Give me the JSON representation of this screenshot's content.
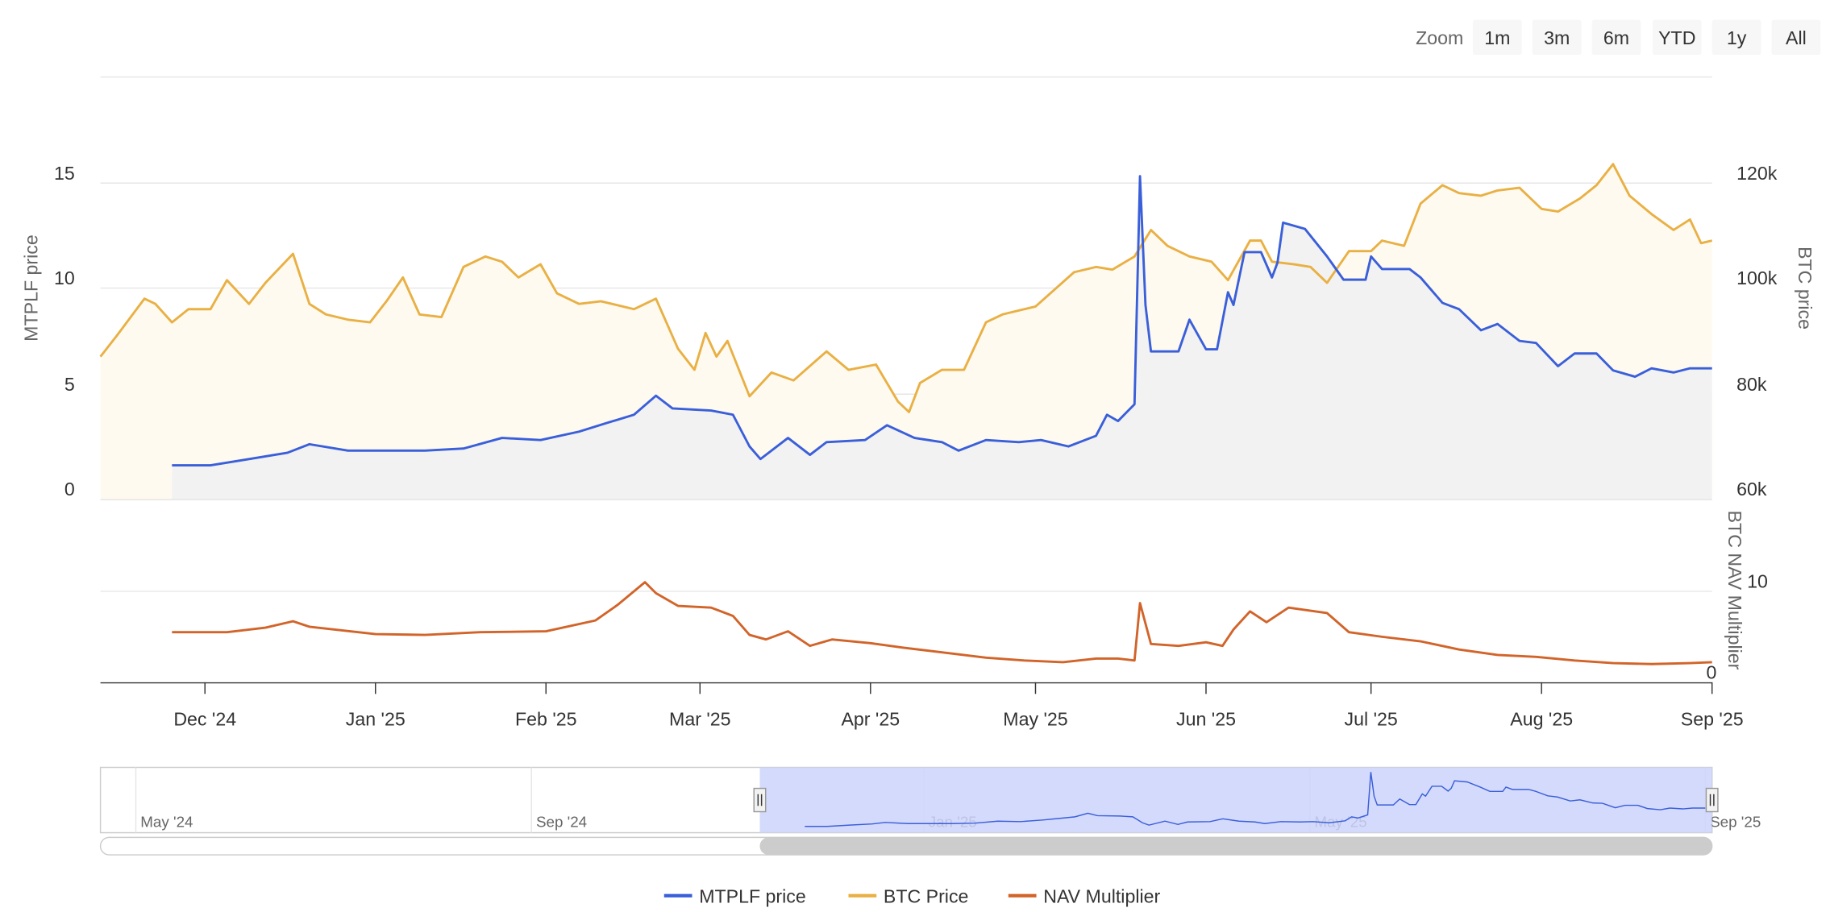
{
  "range_selector": {
    "label": "Zoom",
    "buttons": [
      "1m",
      "3m",
      "6m",
      "YTD",
      "1y",
      "All"
    ]
  },
  "legend": [
    "MTPLF price",
    "BTC Price",
    "NAV Multiplier"
  ],
  "colors": {
    "mtplf": "#3a5fd9",
    "btc": "#e9b044",
    "nav": "#d2642a",
    "mtplf_fill": "#f2f2f2",
    "btc_fill": "#fefaf0",
    "navigator_mask": "#ccd3fb"
  },
  "navigator": {
    "labels": [
      "May '24",
      "Sep '24",
      "Jan '25",
      "May '25",
      "Sep '25"
    ],
    "selected_range": [
      "2024-11-12",
      "2025-09-01"
    ]
  },
  "chart_data": {
    "type": "line",
    "x_range": [
      "2024-11-12",
      "2025-09-01"
    ],
    "x_ticks": [
      "Dec '24",
      "Jan '25",
      "Feb '25",
      "Mar '25",
      "Apr '25",
      "May '25",
      "Jun '25",
      "Jul '25",
      "Aug '25",
      "Sep '25"
    ],
    "grid": true,
    "legend_position": "bottom",
    "yaxes": [
      {
        "title": "MTPLF price",
        "ticks": [
          "0",
          "5",
          "10",
          "15"
        ],
        "range": [
          0,
          20
        ],
        "side": "left"
      },
      {
        "title": "BTC price",
        "ticks": [
          "60k",
          "80k",
          "100k",
          "120k"
        ],
        "range": [
          60000,
          140000
        ],
        "side": "right"
      },
      {
        "title": "BTC NAV Multiplier",
        "ticks": [
          "0",
          "10"
        ],
        "range": [
          0,
          18
        ],
        "side": "right",
        "pane": "lower"
      }
    ],
    "series": [
      {
        "name": "MTPLF price",
        "type": "area",
        "axis": 0,
        "data": [
          [
            "2024-11-25",
            1.6
          ],
          [
            "2024-12-02",
            1.6
          ],
          [
            "2024-12-09",
            1.9
          ],
          [
            "2024-12-16",
            2.2
          ],
          [
            "2024-12-20",
            2.6
          ],
          [
            "2024-12-27",
            2.3
          ],
          [
            "2025-01-03",
            2.3
          ],
          [
            "2025-01-10",
            2.3
          ],
          [
            "2025-01-17",
            2.4
          ],
          [
            "2025-01-24",
            2.9
          ],
          [
            "2025-01-31",
            2.8
          ],
          [
            "2025-02-07",
            3.2
          ],
          [
            "2025-02-12",
            3.6
          ],
          [
            "2025-02-17",
            4.0
          ],
          [
            "2025-02-21",
            4.9
          ],
          [
            "2025-02-24",
            4.3
          ],
          [
            "2025-03-03",
            4.2
          ],
          [
            "2025-03-07",
            4.0
          ],
          [
            "2025-03-10",
            2.5
          ],
          [
            "2025-03-12",
            1.9
          ],
          [
            "2025-03-17",
            2.9
          ],
          [
            "2025-03-21",
            2.1
          ],
          [
            "2025-03-24",
            2.7
          ],
          [
            "2025-03-31",
            2.8
          ],
          [
            "2025-04-04",
            3.5
          ],
          [
            "2025-04-09",
            2.9
          ],
          [
            "2025-04-14",
            2.7
          ],
          [
            "2025-04-17",
            2.3
          ],
          [
            "2025-04-22",
            2.8
          ],
          [
            "2025-04-28",
            2.7
          ],
          [
            "2025-05-02",
            2.8
          ],
          [
            "2025-05-07",
            2.5
          ],
          [
            "2025-05-12",
            3.0
          ],
          [
            "2025-05-14",
            4.0
          ],
          [
            "2025-05-16",
            3.7
          ],
          [
            "2025-05-19",
            4.5
          ],
          [
            "2025-05-20",
            15.3
          ],
          [
            "2025-05-21",
            9.2
          ],
          [
            "2025-05-22",
            7.0
          ],
          [
            "2025-05-27",
            7.0
          ],
          [
            "2025-05-29",
            8.5
          ],
          [
            "2025-06-01",
            7.1
          ],
          [
            "2025-06-03",
            7.1
          ],
          [
            "2025-06-05",
            9.8
          ],
          [
            "2025-06-06",
            9.2
          ],
          [
            "2025-06-08",
            11.7
          ],
          [
            "2025-06-11",
            11.7
          ],
          [
            "2025-06-13",
            10.5
          ],
          [
            "2025-06-14",
            11.2
          ],
          [
            "2025-06-15",
            13.1
          ],
          [
            "2025-06-19",
            12.8
          ],
          [
            "2025-06-23",
            11.5
          ],
          [
            "2025-06-26",
            10.4
          ],
          [
            "2025-06-30",
            10.4
          ],
          [
            "2025-07-01",
            11.5
          ],
          [
            "2025-07-03",
            10.9
          ],
          [
            "2025-07-08",
            10.9
          ],
          [
            "2025-07-10",
            10.5
          ],
          [
            "2025-07-14",
            9.3
          ],
          [
            "2025-07-17",
            9.0
          ],
          [
            "2025-07-21",
            8.0
          ],
          [
            "2025-07-24",
            8.3
          ],
          [
            "2025-07-28",
            7.5
          ],
          [
            "2025-07-31",
            7.4
          ],
          [
            "2025-08-04",
            6.3
          ],
          [
            "2025-08-07",
            6.9
          ],
          [
            "2025-08-11",
            6.9
          ],
          [
            "2025-08-14",
            6.1
          ],
          [
            "2025-08-18",
            5.8
          ],
          [
            "2025-08-21",
            6.2
          ],
          [
            "2025-08-25",
            6.0
          ],
          [
            "2025-08-28",
            6.2
          ],
          [
            "2025-09-01",
            6.2
          ]
        ]
      },
      {
        "name": "BTC Price",
        "type": "area",
        "axis": 1,
        "data": [
          [
            "2024-11-12",
            87000
          ],
          [
            "2024-11-15",
            91000
          ],
          [
            "2024-11-20",
            98000
          ],
          [
            "2024-11-22",
            97000
          ],
          [
            "2024-11-25",
            93500
          ],
          [
            "2024-11-28",
            96000
          ],
          [
            "2024-12-02",
            96000
          ],
          [
            "2024-12-05",
            101500
          ],
          [
            "2024-12-09",
            97000
          ],
          [
            "2024-12-12",
            101000
          ],
          [
            "2024-12-17",
            106500
          ],
          [
            "2024-12-20",
            97000
          ],
          [
            "2024-12-23",
            95000
          ],
          [
            "2024-12-27",
            94000
          ],
          [
            "2024-12-31",
            93500
          ],
          [
            "2025-01-03",
            97500
          ],
          [
            "2025-01-06",
            102000
          ],
          [
            "2025-01-09",
            95000
          ],
          [
            "2025-01-13",
            94500
          ],
          [
            "2025-01-17",
            104000
          ],
          [
            "2025-01-21",
            106000
          ],
          [
            "2025-01-24",
            105000
          ],
          [
            "2025-01-27",
            102000
          ],
          [
            "2025-01-31",
            104500
          ],
          [
            "2025-02-03",
            99000
          ],
          [
            "2025-02-07",
            97000
          ],
          [
            "2025-02-11",
            97500
          ],
          [
            "2025-02-17",
            96000
          ],
          [
            "2025-02-21",
            98000
          ],
          [
            "2025-02-25",
            88500
          ],
          [
            "2025-02-28",
            84500
          ],
          [
            "2025-03-02",
            91500
          ],
          [
            "2025-03-04",
            87000
          ],
          [
            "2025-03-06",
            90000
          ],
          [
            "2025-03-10",
            79500
          ],
          [
            "2025-03-14",
            84000
          ],
          [
            "2025-03-18",
            82500
          ],
          [
            "2025-03-24",
            88000
          ],
          [
            "2025-03-28",
            84500
          ],
          [
            "2025-04-02",
            85500
          ],
          [
            "2025-04-06",
            78500
          ],
          [
            "2025-04-08",
            76500
          ],
          [
            "2025-04-10",
            82000
          ],
          [
            "2025-04-14",
            84500
          ],
          [
            "2025-04-18",
            84500
          ],
          [
            "2025-04-22",
            93500
          ],
          [
            "2025-04-25",
            95000
          ],
          [
            "2025-05-01",
            96500
          ],
          [
            "2025-05-08",
            103000
          ],
          [
            "2025-05-12",
            104000
          ],
          [
            "2025-05-15",
            103500
          ],
          [
            "2025-05-19",
            106000
          ],
          [
            "2025-05-22",
            111000
          ],
          [
            "2025-05-25",
            108000
          ],
          [
            "2025-05-29",
            106000
          ],
          [
            "2025-06-02",
            105000
          ],
          [
            "2025-06-05",
            101500
          ],
          [
            "2025-06-09",
            109000
          ],
          [
            "2025-06-11",
            109000
          ],
          [
            "2025-06-13",
            105000
          ],
          [
            "2025-06-17",
            104500
          ],
          [
            "2025-06-20",
            104000
          ],
          [
            "2025-06-23",
            101000
          ],
          [
            "2025-06-27",
            107000
          ],
          [
            "2025-07-01",
            107000
          ],
          [
            "2025-07-03",
            109000
          ],
          [
            "2025-07-07",
            108000
          ],
          [
            "2025-07-10",
            116000
          ],
          [
            "2025-07-14",
            119500
          ],
          [
            "2025-07-17",
            118000
          ],
          [
            "2025-07-21",
            117500
          ],
          [
            "2025-07-24",
            118500
          ],
          [
            "2025-07-28",
            119000
          ],
          [
            "2025-08-01",
            115000
          ],
          [
            "2025-08-04",
            114500
          ],
          [
            "2025-08-08",
            117000
          ],
          [
            "2025-08-11",
            119500
          ],
          [
            "2025-08-14",
            123500
          ],
          [
            "2025-08-17",
            117500
          ],
          [
            "2025-08-21",
            114000
          ],
          [
            "2025-08-25",
            111000
          ],
          [
            "2025-08-28",
            113000
          ],
          [
            "2025-08-30",
            108500
          ],
          [
            "2025-09-01",
            109000
          ]
        ]
      },
      {
        "name": "NAV Multiplier",
        "type": "line",
        "axis": 2,
        "data": [
          [
            "2024-11-25",
            5.5
          ],
          [
            "2024-12-05",
            5.5
          ],
          [
            "2024-12-12",
            6.0
          ],
          [
            "2024-12-17",
            6.7
          ],
          [
            "2024-12-20",
            6.1
          ],
          [
            "2025-01-01",
            5.3
          ],
          [
            "2025-01-10",
            5.2
          ],
          [
            "2025-01-20",
            5.5
          ],
          [
            "2025-02-01",
            5.6
          ],
          [
            "2025-02-10",
            6.8
          ],
          [
            "2025-02-14",
            8.5
          ],
          [
            "2025-02-19",
            11.0
          ],
          [
            "2025-02-21",
            9.8
          ],
          [
            "2025-02-25",
            8.4
          ],
          [
            "2025-03-03",
            8.2
          ],
          [
            "2025-03-07",
            7.3
          ],
          [
            "2025-03-10",
            5.2
          ],
          [
            "2025-03-13",
            4.7
          ],
          [
            "2025-03-17",
            5.6
          ],
          [
            "2025-03-21",
            4.0
          ],
          [
            "2025-03-25",
            4.7
          ],
          [
            "2025-04-01",
            4.3
          ],
          [
            "2025-04-07",
            3.8
          ],
          [
            "2025-04-14",
            3.3
          ],
          [
            "2025-04-22",
            2.7
          ],
          [
            "2025-04-29",
            2.4
          ],
          [
            "2025-05-06",
            2.2
          ],
          [
            "2025-05-12",
            2.6
          ],
          [
            "2025-05-16",
            2.6
          ],
          [
            "2025-05-19",
            2.4
          ],
          [
            "2025-05-20",
            8.7
          ],
          [
            "2025-05-22",
            4.2
          ],
          [
            "2025-05-27",
            4.0
          ],
          [
            "2025-06-01",
            4.4
          ],
          [
            "2025-06-04",
            4.0
          ],
          [
            "2025-06-06",
            5.8
          ],
          [
            "2025-06-09",
            7.8
          ],
          [
            "2025-06-12",
            6.6
          ],
          [
            "2025-06-16",
            8.2
          ],
          [
            "2025-06-23",
            7.6
          ],
          [
            "2025-06-27",
            5.5
          ],
          [
            "2025-07-03",
            5.0
          ],
          [
            "2025-07-10",
            4.5
          ],
          [
            "2025-07-17",
            3.6
          ],
          [
            "2025-07-24",
            3.0
          ],
          [
            "2025-07-31",
            2.8
          ],
          [
            "2025-08-07",
            2.4
          ],
          [
            "2025-08-14",
            2.1
          ],
          [
            "2025-08-21",
            2.0
          ],
          [
            "2025-08-28",
            2.1
          ],
          [
            "2025-09-01",
            2.2
          ]
        ]
      }
    ]
  }
}
